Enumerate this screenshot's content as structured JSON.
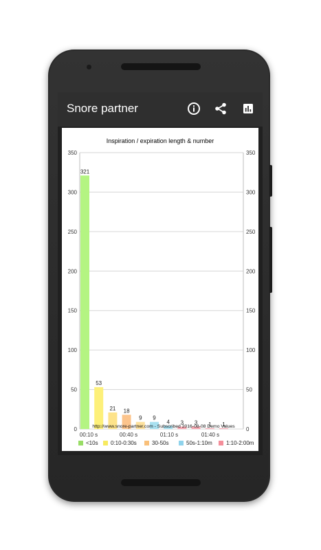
{
  "app": {
    "title": "Snore partner"
  },
  "toolbar": {
    "info_icon": "info-icon",
    "share_icon": "share-icon",
    "stats_icon": "bar-chart-icon"
  },
  "chart_data": {
    "type": "bar",
    "title": "Inspiration / expiration length & number",
    "categories": [
      "<10s",
      "0:10-0:30s",
      "30-50s",
      "50s-1:10m",
      "1:10-2:00m",
      "",
      "",
      "",
      "",
      "",
      ""
    ],
    "values": [
      321,
      53,
      21,
      18,
      9,
      9,
      4,
      3,
      3,
      1,
      1
    ],
    "bar_colors": [
      "#b4f482",
      "#fdf07a",
      "#fde38a",
      "#fcc48c",
      "#fde09c",
      "#a8e0f0",
      "#a8e0f0",
      "#f6a6b0",
      "#f6a6b0",
      "#f6a6b0",
      "#f6a6b0"
    ],
    "x_tick_labels": [
      "00:10 s",
      "00:40 s",
      "01:10 s",
      "01:40 s"
    ],
    "ylim": [
      0,
      350
    ],
    "y_ticks": [
      0,
      50,
      100,
      150,
      200,
      250,
      300,
      350
    ],
    "grid": true,
    "legend": [
      {
        "label": "<10s",
        "color": "#99dd66"
      },
      {
        "label": "0:10-0:30s",
        "color": "#f7ea5f"
      },
      {
        "label": "30-50s",
        "color": "#f9c07a"
      },
      {
        "label": "50s-1:10m",
        "color": "#8fd3ec"
      },
      {
        "label": "1:10-2:00m",
        "color": "#f48e9a"
      }
    ],
    "legend_position": "bottom",
    "footer_note": "http://www.snore-partner.com - Subscribed 2016-08-08 Demo Values"
  }
}
